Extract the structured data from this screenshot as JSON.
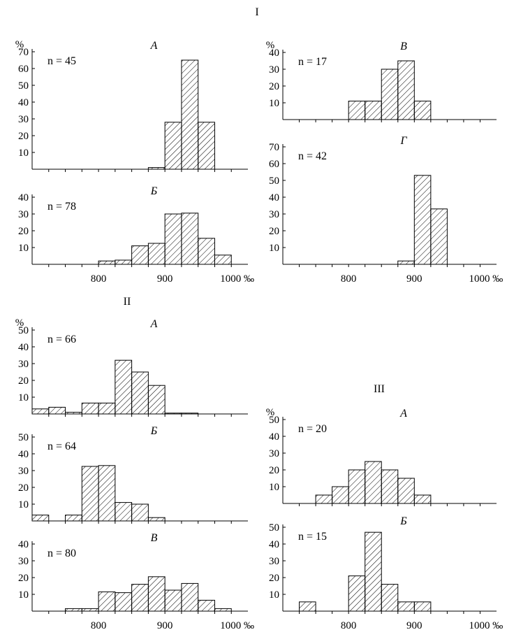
{
  "group_labels": [
    "I",
    "II",
    "III"
  ],
  "chart_data": [
    {
      "type": "bar",
      "group": "I",
      "title": "А",
      "n_label": "n = 45",
      "ylabel": "%",
      "ylim": [
        0,
        70
      ],
      "yticks": [
        10,
        20,
        30,
        40,
        50,
        60,
        70
      ],
      "xlim": [
        700,
        1025
      ],
      "xticks": [],
      "bin_width": 25,
      "bins": [
        {
          "x": 900,
          "y": 1
        },
        {
          "x": 925,
          "y": 28
        },
        {
          "x": 950,
          "y": 65
        },
        {
          "x": 975,
          "y": 28
        }
      ]
    },
    {
      "type": "bar",
      "group": "I",
      "title": "Б",
      "n_label": "n = 78",
      "ylabel": "",
      "ylim": [
        0,
        40
      ],
      "yticks": [
        10,
        20,
        30,
        40
      ],
      "xlim": [
        700,
        1025
      ],
      "xticks": [
        "800",
        "900",
        "1000 ‰"
      ],
      "bin_width": 25,
      "bins": [
        {
          "x": 825,
          "y": 2
        },
        {
          "x": 850,
          "y": 2.5
        },
        {
          "x": 875,
          "y": 11
        },
        {
          "x": 900,
          "y": 12.5
        },
        {
          "x": 925,
          "y": 30
        },
        {
          "x": 950,
          "y": 30.5
        },
        {
          "x": 975,
          "y": 15.5
        },
        {
          "x": 1000,
          "y": 5.5
        }
      ]
    },
    {
      "type": "bar",
      "group": "I",
      "title": "В",
      "n_label": "n = 17",
      "ylabel": "%",
      "ylim": [
        0,
        40
      ],
      "yticks": [
        10,
        20,
        30,
        40
      ],
      "xlim": [
        700,
        1025
      ],
      "xticks": [],
      "bin_width": 25,
      "bins": [
        {
          "x": 825,
          "y": 11
        },
        {
          "x": 850,
          "y": 11
        },
        {
          "x": 875,
          "y": 30
        },
        {
          "x": 900,
          "y": 35
        },
        {
          "x": 925,
          "y": 11
        }
      ]
    },
    {
      "type": "bar",
      "group": "I",
      "title": "Г",
      "n_label": "n = 42",
      "ylabel": "",
      "ylim": [
        0,
        70
      ],
      "yticks": [
        10,
        20,
        30,
        40,
        50,
        60,
        70
      ],
      "xlim": [
        700,
        1025
      ],
      "xticks": [
        "800",
        "900",
        "1000 ‰"
      ],
      "bin_width": 25,
      "bins": [
        {
          "x": 900,
          "y": 2
        },
        {
          "x": 925,
          "y": 53
        },
        {
          "x": 950,
          "y": 33
        }
      ]
    },
    {
      "type": "bar",
      "group": "II",
      "title": "А",
      "n_label": "n = 66",
      "ylabel": "%",
      "ylim": [
        0,
        50
      ],
      "yticks": [
        10,
        20,
        30,
        40,
        50
      ],
      "xlim": [
        700,
        1025
      ],
      "xticks": [],
      "bin_width": 25,
      "bins": [
        {
          "x": 725,
          "y": 3
        },
        {
          "x": 750,
          "y": 4
        },
        {
          "x": 775,
          "y": 1
        },
        {
          "x": 800,
          "y": 6.5
        },
        {
          "x": 825,
          "y": 6.5
        },
        {
          "x": 850,
          "y": 32
        },
        {
          "x": 875,
          "y": 25
        },
        {
          "x": 900,
          "y": 17
        },
        {
          "x": 925,
          "y": 0.5
        },
        {
          "x": 950,
          "y": 0.5
        }
      ]
    },
    {
      "type": "bar",
      "group": "II",
      "title": "Б",
      "n_label": "n = 64",
      "ylabel": "",
      "ylim": [
        0,
        50
      ],
      "yticks": [
        10,
        20,
        30,
        40,
        50
      ],
      "xlim": [
        700,
        1025
      ],
      "xticks": [],
      "bin_width": 25,
      "bins": [
        {
          "x": 725,
          "y": 3.5
        },
        {
          "x": 775,
          "y": 3.5
        },
        {
          "x": 800,
          "y": 32.5
        },
        {
          "x": 825,
          "y": 33
        },
        {
          "x": 850,
          "y": 11
        },
        {
          "x": 875,
          "y": 10
        },
        {
          "x": 900,
          "y": 2
        }
      ]
    },
    {
      "type": "bar",
      "group": "II",
      "title": "В",
      "n_label": "n = 80",
      "ylabel": "",
      "ylim": [
        0,
        40
      ],
      "yticks": [
        10,
        20,
        30,
        40
      ],
      "xlim": [
        700,
        1025
      ],
      "xticks": [
        "800",
        "900",
        "1000 ‰"
      ],
      "bin_width": 25,
      "bins": [
        {
          "x": 775,
          "y": 1.5
        },
        {
          "x": 800,
          "y": 1.5
        },
        {
          "x": 825,
          "y": 11.5
        },
        {
          "x": 850,
          "y": 11
        },
        {
          "x": 875,
          "y": 16
        },
        {
          "x": 900,
          "y": 20.5
        },
        {
          "x": 925,
          "y": 12.5
        },
        {
          "x": 950,
          "y": 16.5
        },
        {
          "x": 975,
          "y": 6.5
        },
        {
          "x": 1000,
          "y": 1.5
        }
      ]
    },
    {
      "type": "bar",
      "group": "III",
      "title": "А",
      "n_label": "n = 20",
      "ylabel": "%",
      "ylim": [
        0,
        50
      ],
      "yticks": [
        10,
        20,
        30,
        40,
        50
      ],
      "xlim": [
        700,
        1025
      ],
      "xticks": [],
      "bin_width": 25,
      "bins": [
        {
          "x": 775,
          "y": 5
        },
        {
          "x": 800,
          "y": 10
        },
        {
          "x": 825,
          "y": 20
        },
        {
          "x": 850,
          "y": 25
        },
        {
          "x": 875,
          "y": 20
        },
        {
          "x": 900,
          "y": 15
        },
        {
          "x": 925,
          "y": 5
        }
      ]
    },
    {
      "type": "bar",
      "group": "III",
      "title": "Б",
      "n_label": "n = 15",
      "ylabel": "",
      "ylim": [
        0,
        50
      ],
      "yticks": [
        10,
        20,
        30,
        40,
        50
      ],
      "xlim": [
        700,
        1025
      ],
      "xticks": [
        "800",
        "900",
        "1000 ‰"
      ],
      "bin_width": 25,
      "bins": [
        {
          "x": 750,
          "y": 5.5
        },
        {
          "x": 825,
          "y": 21
        },
        {
          "x": 850,
          "y": 47
        },
        {
          "x": 875,
          "y": 16
        },
        {
          "x": 900,
          "y": 5.5
        },
        {
          "x": 925,
          "y": 5.5
        }
      ]
    }
  ]
}
